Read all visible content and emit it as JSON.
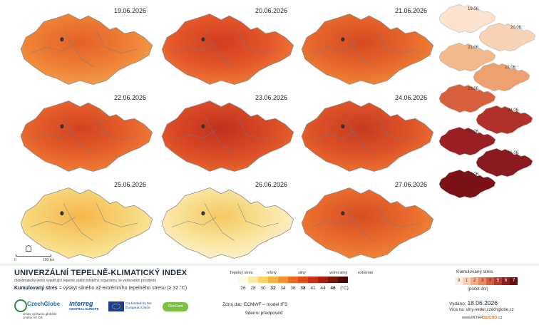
{
  "daily_maps": {
    "dates": [
      "19.06.2026",
      "20.06.2026",
      "21.06.2026",
      "22.06.2026",
      "23.06.2026",
      "24.06.2026",
      "25.06.2026",
      "26.06.2026",
      "27.06.2026"
    ]
  },
  "cumulative_maps": {
    "dates": [
      "19.06.",
      "20.06.",
      "21.06.",
      "22.06.",
      "23.06.",
      "24.06.",
      "25.06.",
      "26.06.",
      "27.06."
    ]
  },
  "scale": {
    "zero": "0",
    "distance": "100 km"
  },
  "header": {
    "title": "UNIVERZÁLNÍ TEPELNĚ-KLIMATICKÝ INDEX",
    "subtitle": "(bioklimatický index vyjadřující tepelné zátěží lidského organismu ve venkovním prostředí)",
    "cumulative_label": "Kumulovaný stres",
    "cumulative_text": " = výskyt silného až extrémního tepelného stresu (≥ 32 °C)"
  },
  "heat_legend": {
    "title": "Tepelný stres:",
    "levels": [
      "mírný",
      "silný",
      "velmi silný",
      "extrémní"
    ],
    "colors": [
      "#fdfbe6",
      "#fbeaa3",
      "#f9d26a",
      "#f6b343",
      "#f28f2e",
      "#ee6a22",
      "#e4491b",
      "#cc2e14",
      "#a61d0e",
      "#7d140a",
      "#4d0a05"
    ],
    "ticks": [
      "26",
      "28",
      "30",
      "32",
      "34",
      "36",
      "38",
      "41",
      "44",
      "46"
    ],
    "unit": "(°C)"
  },
  "cum_legend": {
    "title": "Kumulovaný stres",
    "values": [
      "0",
      "1",
      "2",
      "3",
      "4",
      "5",
      "6",
      "7"
    ],
    "colors": [
      "#fbeee4",
      "#f6d2b6",
      "#f0b088",
      "#e58a62",
      "#d26040",
      "#b53a2c",
      "#8f1c1c",
      "#6a0e12"
    ],
    "subtitle": "(počet dní)"
  },
  "source": {
    "label": "Zdroj dat:",
    "model": "ECMWF – model IFS",
    "forecast": "9denní předpověď"
  },
  "issued": {
    "label": "Vydáno:",
    "date": "18.06.2026"
  },
  "more_info": {
    "label": "Více na:",
    "url": "vlny-veder.czechglobe.cz"
  },
  "web": {
    "prefix": "www.INTER",
    "highlight": "SUCHO",
    "suffix": ".cz"
  },
  "logos": {
    "czechglobe_name": "CzechGlobe",
    "czechglobe_sub": "Ústav výzkumu globální změny AV ČR",
    "interreg_name": "interreg",
    "interreg_sub": "CENTRAL EUROPE",
    "eu_text": "Co-funded by the European Union",
    "climcard": "ClimCard"
  }
}
